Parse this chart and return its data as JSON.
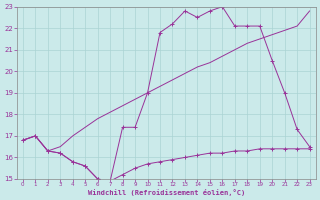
{
  "xlabel": "Windchill (Refroidissement éolien,°C)",
  "bg_color": "#cbeaea",
  "line_color": "#993399",
  "grid_color": "#aad4d4",
  "xlim": [
    -0.5,
    23.5
  ],
  "ylim": [
    15,
    23
  ],
  "xticks": [
    0,
    1,
    2,
    3,
    4,
    5,
    6,
    7,
    8,
    9,
    10,
    11,
    12,
    13,
    14,
    15,
    16,
    17,
    18,
    19,
    20,
    21,
    22,
    23
  ],
  "yticks": [
    15,
    16,
    17,
    18,
    19,
    20,
    21,
    22,
    23
  ],
  "line1_x": [
    0,
    1,
    2,
    3,
    4,
    5,
    6,
    7,
    8,
    9,
    10,
    11,
    12,
    13,
    14,
    15,
    16,
    17,
    18,
    19,
    20,
    21,
    22,
    23
  ],
  "line1_y": [
    16.8,
    17.0,
    16.3,
    16.2,
    15.8,
    15.6,
    15.0,
    14.9,
    15.2,
    15.5,
    15.7,
    15.8,
    15.9,
    16.0,
    16.1,
    16.2,
    16.2,
    16.3,
    16.3,
    16.4,
    16.4,
    16.4,
    16.4,
    16.4
  ],
  "line2_x": [
    0,
    1,
    2,
    3,
    4,
    5,
    6,
    7,
    8,
    9,
    10,
    11,
    12,
    13,
    14,
    15,
    16,
    17,
    18,
    19,
    20,
    21,
    22,
    23
  ],
  "line2_y": [
    16.8,
    17.0,
    16.3,
    16.5,
    17.0,
    17.4,
    17.8,
    18.1,
    18.4,
    18.7,
    19.0,
    19.3,
    19.6,
    19.9,
    20.2,
    20.4,
    20.7,
    21.0,
    21.3,
    21.5,
    21.7,
    21.9,
    22.1,
    22.8
  ],
  "line3_x": [
    0,
    1,
    2,
    3,
    4,
    5,
    6,
    7,
    8,
    9,
    10,
    11,
    12,
    13,
    14,
    15,
    16,
    17,
    18,
    19,
    20,
    21,
    22,
    23
  ],
  "line3_y": [
    16.8,
    17.0,
    16.3,
    16.2,
    15.8,
    15.6,
    15.0,
    14.9,
    17.4,
    17.4,
    19.0,
    21.8,
    22.2,
    22.8,
    22.5,
    22.8,
    23.0,
    22.1,
    22.1,
    22.1,
    20.5,
    19.0,
    17.3,
    16.5
  ],
  "line1_has_markers": true,
  "line2_has_markers": false,
  "line3_has_markers": true
}
